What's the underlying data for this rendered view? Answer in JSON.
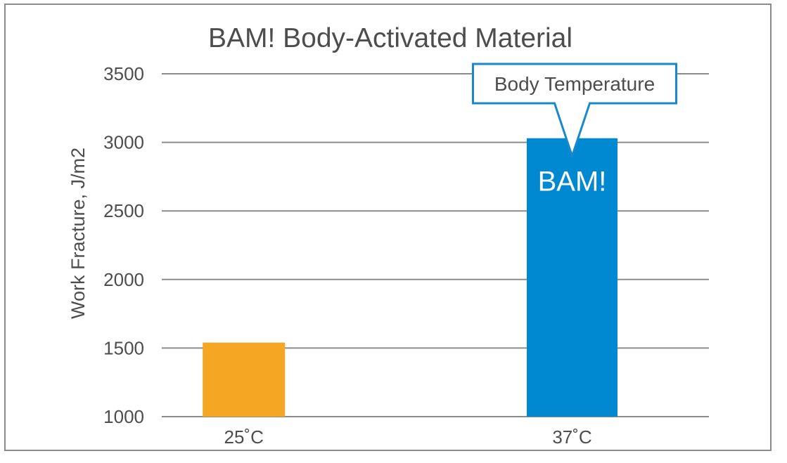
{
  "chart_data": {
    "type": "bar",
    "title": "BAM! Body-Activated Material",
    "xlabel": "",
    "ylabel": "Work Fracture, J/m2",
    "ylim": [
      1000,
      3500
    ],
    "yticks": [
      1000,
      1500,
      2000,
      2500,
      3000,
      3500
    ],
    "ytick_labels": [
      "1000",
      "1500",
      "2000",
      "2500",
      "3000",
      "3500"
    ],
    "categories": [
      "25˚C",
      "37˚C"
    ],
    "values": [
      1540,
      3030
    ],
    "bar_colors": [
      "#f5a623",
      "#0088d1"
    ],
    "bar_labels": [
      "",
      "BAM!"
    ],
    "grid": true,
    "annotation": {
      "text": "Body Temperature",
      "target_category": "37˚C",
      "border_color": "#1a88cc"
    }
  },
  "colors": {
    "frame": "#8c8c8c",
    "grid": "#8c8c8c",
    "text": "#4d4d4d"
  }
}
